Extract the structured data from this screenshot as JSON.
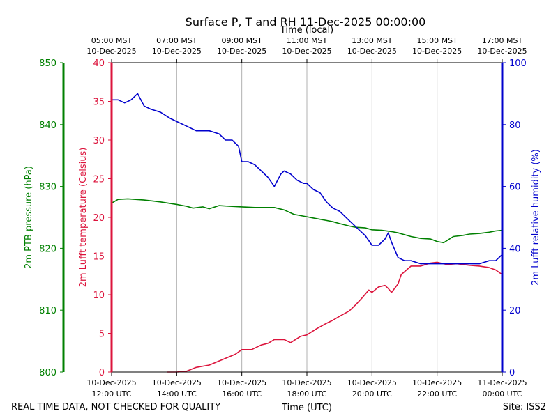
{
  "chart_data": {
    "type": "line",
    "title": "Surface P, T and RH 11-Dec-2025 00:00:00",
    "xlabel_bottom": "Time (UTC)",
    "xlabel_top": "Time (local)",
    "footer_left": "REAL TIME DATA, NOT CHECKED FOR QUALITY",
    "footer_right": "Site: ISS2",
    "x_range_hours": [
      12,
      24
    ],
    "bottom_ticks": [
      {
        "hour": 12,
        "line1": "10-Dec-2025",
        "line2": "12:00 UTC"
      },
      {
        "hour": 14,
        "line1": "10-Dec-2025",
        "line2": "14:00 UTC"
      },
      {
        "hour": 16,
        "line1": "10-Dec-2025",
        "line2": "16:00 UTC"
      },
      {
        "hour": 18,
        "line1": "10-Dec-2025",
        "line2": "18:00 UTC"
      },
      {
        "hour": 20,
        "line1": "10-Dec-2025",
        "line2": "20:00 UTC"
      },
      {
        "hour": 22,
        "line1": "10-Dec-2025",
        "line2": "22:00 UTC"
      },
      {
        "hour": 24,
        "line1": "11-Dec-2025",
        "line2": "00:00 UTC"
      }
    ],
    "top_ticks": [
      {
        "hour": 12,
        "line1": "05:00 MST",
        "line2": "10-Dec-2025"
      },
      {
        "hour": 14,
        "line1": "07:00 MST",
        "line2": "10-Dec-2025"
      },
      {
        "hour": 16,
        "line1": "09:00 MST",
        "line2": "10-Dec-2025"
      },
      {
        "hour": 18,
        "line1": "11:00 MST",
        "line2": "10-Dec-2025"
      },
      {
        "hour": 20,
        "line1": "13:00 MST",
        "line2": "10-Dec-2025"
      },
      {
        "hour": 22,
        "line1": "15:00 MST",
        "line2": "10-Dec-2025"
      },
      {
        "hour": 24,
        "line1": "17:00 MST",
        "line2": "10-Dec-2025"
      }
    ],
    "axes": {
      "pressure": {
        "label": "2m PTB pressure (hPa)",
        "range": [
          800,
          850
        ],
        "ticks": [
          "800",
          "810",
          "820",
          "830",
          "840",
          "850"
        ],
        "color": "#008000"
      },
      "temperature": {
        "label": "2m Lufft temperature (Celsius)",
        "range": [
          0,
          40
        ],
        "ticks": [
          "0",
          "5",
          "10",
          "15",
          "20",
          "25",
          "30",
          "35",
          "40"
        ],
        "color": "#dc143c"
      },
      "humidity": {
        "label": "2m Lufft relative humidity (%)",
        "range": [
          0,
          100
        ],
        "ticks": [
          "0",
          "20",
          "40",
          "60",
          "80",
          "100"
        ],
        "color": "#0000cd"
      }
    },
    "series": [
      {
        "name": "2m PTB pressure (hPa)",
        "axis": "pressure",
        "color": "#008000",
        "x": [
          12.0,
          12.2,
          12.5,
          13.0,
          13.5,
          14.0,
          14.3,
          14.5,
          14.8,
          15.0,
          15.3,
          15.6,
          16.0,
          16.4,
          16.8,
          17.0,
          17.3,
          17.6,
          18.0,
          18.3,
          18.6,
          18.8,
          19.0,
          19.3,
          19.5,
          19.8,
          20.0,
          20.3,
          20.6,
          20.8,
          21.0,
          21.2,
          21.5,
          21.8,
          22.0,
          22.2,
          22.5,
          22.8,
          23.0,
          23.3,
          23.6,
          23.8,
          24.0
        ],
        "y": [
          827.3,
          827.9,
          828.0,
          827.8,
          827.5,
          827.1,
          826.8,
          826.5,
          826.7,
          826.4,
          826.9,
          826.8,
          826.7,
          826.6,
          826.6,
          826.6,
          826.2,
          825.5,
          825.1,
          824.8,
          824.5,
          824.3,
          824.0,
          823.6,
          823.4,
          823.3,
          823.0,
          822.9,
          822.7,
          822.5,
          822.2,
          821.9,
          821.6,
          821.5,
          821.1,
          820.9,
          821.9,
          822.1,
          822.3,
          822.4,
          822.6,
          822.8,
          822.9
        ]
      },
      {
        "name": "2m Lufft temperature (Celsius)",
        "axis": "temperature",
        "color": "#dc143c",
        "x": [
          13.7,
          14.0,
          14.3,
          14.6,
          15.0,
          15.4,
          15.8,
          16.0,
          16.3,
          16.6,
          16.8,
          17.0,
          17.3,
          17.5,
          17.8,
          18.0,
          18.3,
          18.6,
          18.8,
          19.0,
          19.3,
          19.5,
          19.7,
          19.9,
          20.0,
          20.2,
          20.4,
          20.5,
          20.6,
          20.8,
          20.9,
          21.2,
          21.5,
          21.8,
          22.0,
          22.3,
          22.6,
          23.0,
          23.3,
          23.6,
          23.8,
          24.0
        ],
        "y": [
          0.0,
          0.0,
          0.1,
          0.6,
          0.9,
          1.6,
          2.3,
          2.9,
          2.9,
          3.5,
          3.7,
          4.2,
          4.2,
          3.8,
          4.6,
          4.8,
          5.6,
          6.3,
          6.7,
          7.2,
          7.9,
          8.7,
          9.6,
          10.6,
          10.3,
          11.0,
          11.2,
          10.8,
          10.3,
          11.4,
          12.6,
          13.7,
          13.7,
          14.1,
          14.2,
          13.9,
          14.0,
          13.8,
          13.7,
          13.5,
          13.2,
          12.6
        ]
      },
      {
        "name": "2m Lufft relative humidity (%)",
        "axis": "humidity",
        "color": "#0000cd",
        "x": [
          12.0,
          12.2,
          12.4,
          12.6,
          12.8,
          13.0,
          13.2,
          13.5,
          13.8,
          14.0,
          14.2,
          14.4,
          14.6,
          14.8,
          15.0,
          15.3,
          15.5,
          15.7,
          15.9,
          16.0,
          16.2,
          16.4,
          16.6,
          16.8,
          17.0,
          17.2,
          17.3,
          17.5,
          17.7,
          17.9,
          18.0,
          18.2,
          18.4,
          18.6,
          18.8,
          19.0,
          19.2,
          19.4,
          19.6,
          19.8,
          20.0,
          20.2,
          20.4,
          20.5,
          20.6,
          20.8,
          21.0,
          21.2,
          21.5,
          21.8,
          22.0,
          22.3,
          22.6,
          23.0,
          23.3,
          23.6,
          23.8,
          24.0
        ],
        "y": [
          88,
          88,
          87,
          88,
          90,
          86,
          85,
          84,
          82,
          81,
          80,
          79,
          78,
          78,
          78,
          77,
          75,
          75,
          73,
          68,
          68,
          67,
          65,
          63,
          60,
          64,
          65,
          64,
          62,
          61,
          61,
          59,
          58,
          55,
          53,
          52,
          50,
          48,
          46,
          44,
          41,
          41,
          43,
          45,
          42,
          37,
          36,
          36,
          35,
          35,
          35,
          35,
          35,
          35,
          35,
          36,
          36,
          38
        ]
      }
    ]
  }
}
